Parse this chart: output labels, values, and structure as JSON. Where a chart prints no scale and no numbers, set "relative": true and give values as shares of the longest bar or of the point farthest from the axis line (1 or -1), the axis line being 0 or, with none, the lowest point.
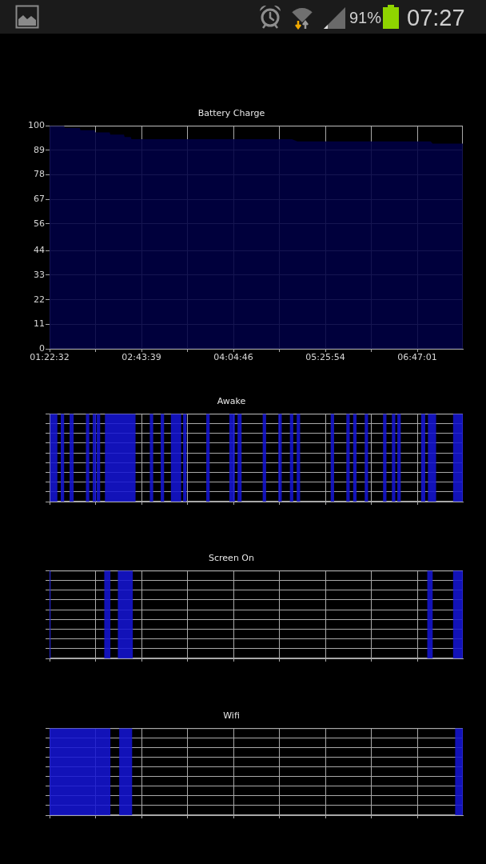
{
  "chart_data": [
    {
      "type": "area",
      "title": "Battery Charge",
      "x": [
        1.3756,
        1.59,
        1.6,
        1.82,
        1.83,
        2.04,
        2.05,
        2.26,
        2.27,
        2.47,
        2.48,
        2.57,
        2.58,
        4.94,
        5.02,
        6.98,
        7.01,
        7.453
      ],
      "values": [
        100,
        100,
        99,
        99,
        98,
        98,
        97,
        97,
        96,
        96,
        95,
        95,
        94,
        94,
        93,
        93,
        92,
        92
      ],
      "color": "#000044",
      "xlim": [
        1.3756,
        7.453
      ],
      "xticks": [
        {
          "value": 1.3756,
          "label": "01:22:32"
        },
        {
          "value": 2.0515,
          "label": null
        },
        {
          "value": 2.7275,
          "label": "02:43:39"
        },
        {
          "value": 3.4035,
          "label": null
        },
        {
          "value": 4.0794,
          "label": "04:04:46"
        },
        {
          "value": 4.7556,
          "label": null
        },
        {
          "value": 5.4317,
          "label": "05:25:54"
        },
        {
          "value": 6.1076,
          "label": null
        },
        {
          "value": 6.7836,
          "label": "06:47:01"
        }
      ],
      "ylim": [
        0,
        100
      ],
      "yticks": [
        0,
        11,
        22,
        33,
        44,
        56,
        67,
        78,
        89,
        100
      ],
      "grid": true,
      "annotations": [
        "91%",
        "07:27"
      ]
    },
    {
      "type": "area",
      "title": "Awake",
      "relative": true,
      "x": [
        1.38,
        1.38,
        1.49,
        1.49,
        1.54,
        1.54,
        1.59,
        1.59,
        1.67,
        1.67,
        1.73,
        1.73,
        1.91,
        1.91,
        1.96,
        1.96,
        2.01,
        2.01,
        2.06,
        2.06,
        2.07,
        2.07,
        2.12,
        2.12,
        2.19,
        2.19,
        2.64,
        2.64,
        2.85,
        2.85,
        2.9,
        2.9,
        3.01,
        3.01,
        3.06,
        3.06,
        3.16,
        3.16,
        3.31,
        3.31,
        3.34,
        3.34,
        3.39,
        3.39,
        3.68,
        3.68,
        3.73,
        3.73,
        4.02,
        4.02,
        4.1,
        4.1,
        4.14,
        4.14,
        4.2,
        4.2,
        4.51,
        4.51,
        4.56,
        4.56,
        4.74,
        4.74,
        4.79,
        4.79,
        4.91,
        4.91,
        4.96,
        4.96,
        5.01,
        5.01,
        5.06,
        5.06,
        5.51,
        5.51,
        5.56,
        5.56,
        5.74,
        5.74,
        5.79,
        5.79,
        5.84,
        5.84,
        5.89,
        5.89,
        6.01,
        6.01,
        6.06,
        6.06,
        6.28,
        6.28,
        6.33,
        6.33,
        6.41,
        6.41,
        6.46,
        6.46,
        6.49,
        6.49,
        6.54,
        6.54,
        6.84,
        6.84,
        6.9,
        6.9,
        6.94,
        6.94,
        7.06,
        7.06,
        7.31,
        7.31,
        7.453
      ],
      "values": [
        0,
        1,
        1,
        0,
        0,
        1,
        1,
        0,
        0,
        1,
        1,
        0,
        0,
        1,
        1,
        0,
        0,
        1,
        1,
        0,
        0,
        1,
        1,
        0,
        0,
        1,
        1,
        0,
        0,
        1,
        1,
        0,
        0,
        1,
        1,
        0,
        0,
        1,
        1,
        0,
        0,
        1,
        1,
        0,
        0,
        1,
        1,
        0,
        0,
        1,
        1,
        0,
        0,
        1,
        1,
        0,
        0,
        1,
        1,
        0,
        0,
        1,
        1,
        0,
        0,
        1,
        1,
        0,
        0,
        1,
        1,
        0,
        0,
        1,
        1,
        0,
        0,
        1,
        1,
        0,
        0,
        1,
        1,
        0,
        0,
        1,
        1,
        0,
        0,
        1,
        1,
        0,
        0,
        1,
        1,
        0,
        0,
        1,
        1,
        0,
        0,
        1,
        1,
        0,
        0,
        1,
        1,
        0,
        0,
        1,
        1
      ],
      "color": "#1414d2",
      "xlim": [
        1.3756,
        7.453
      ],
      "xticks": [
        1.3756,
        2.0515,
        2.7275,
        3.4035,
        4.0794,
        4.7556,
        5.4317,
        6.1076,
        6.7836
      ],
      "grid": true,
      "tick_labels": false
    },
    {
      "type": "area",
      "title": "Screen On",
      "relative": true,
      "x": [
        1.3756,
        1.39,
        1.39,
        2.18,
        2.18,
        2.27,
        2.27,
        2.38,
        2.38,
        2.6,
        2.6,
        6.93,
        6.93,
        7.01,
        7.01,
        7.31,
        7.31,
        7.453
      ],
      "values": [
        1,
        1,
        0,
        0,
        1,
        1,
        0,
        0,
        1,
        1,
        0,
        0,
        1,
        1,
        0,
        0,
        1,
        1
      ],
      "color": "#1414d2",
      "xlim": [
        1.3756,
        7.453
      ],
      "xticks": [
        1.3756,
        2.0515,
        2.7275,
        3.4035,
        4.0794,
        4.7556,
        5.4317,
        6.1076,
        6.7836
      ],
      "grid": true,
      "tick_labels": false
    },
    {
      "type": "area",
      "title": "Wifi",
      "relative": true,
      "x": [
        1.3756,
        2.27,
        2.27,
        2.4,
        2.4,
        2.59,
        2.59,
        7.34,
        7.34,
        7.453
      ],
      "values": [
        1,
        1,
        0,
        0,
        1,
        1,
        0,
        0,
        1,
        1
      ],
      "color": "#1414d2",
      "xlim": [
        1.3756,
        7.453
      ],
      "xticks": [
        1.3756,
        2.0515,
        2.7275,
        3.4035,
        4.0794,
        4.7556,
        5.4317,
        6.1076,
        6.7836
      ],
      "grid": true,
      "tick_labels": false
    }
  ]
}
